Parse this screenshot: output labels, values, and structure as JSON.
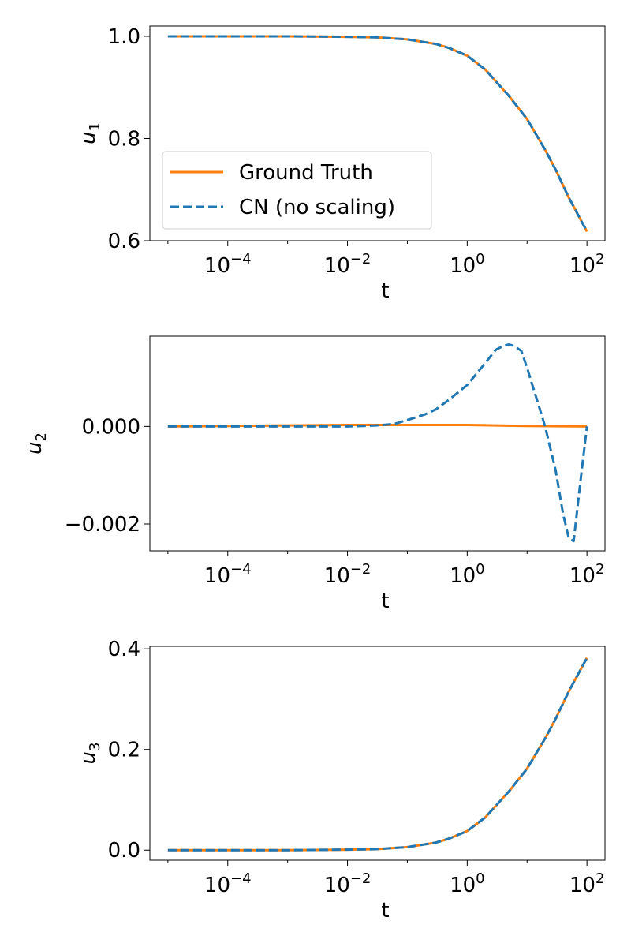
{
  "chart_data": [
    {
      "type": "line",
      "ylabel": "u",
      "ylabel_sub": "1",
      "xlabel": "t",
      "xscale": "log",
      "xlim": [
        5e-06,
        200
      ],
      "ylim": [
        0.6,
        1.02
      ],
      "xticks": [
        -4,
        -2,
        0,
        2
      ],
      "yticks": [
        0.6,
        0.8,
        1.0
      ],
      "ytick_labels": [
        "0.6",
        "0.8",
        "1.0"
      ],
      "legend": {
        "placement": "center-left",
        "entries": [
          "Ground Truth",
          "CN (no scaling)"
        ]
      },
      "series": [
        {
          "name": "Ground Truth",
          "color": "#ff7f0e",
          "style": "solid",
          "x": [
            1e-05,
            0.0001,
            0.001,
            0.01,
            0.03,
            0.1,
            0.3,
            0.5,
            1,
            2,
            3,
            5,
            10,
            20,
            30,
            50,
            100
          ],
          "y": [
            1.0,
            1.0,
            1.0,
            0.999,
            0.998,
            0.994,
            0.985,
            0.977,
            0.962,
            0.935,
            0.912,
            0.883,
            0.838,
            0.778,
            0.739,
            0.684,
            0.618
          ]
        },
        {
          "name": "CN (no scaling)",
          "color": "#1f77b4",
          "style": "dashed",
          "x": [
            1e-05,
            0.0001,
            0.001,
            0.01,
            0.03,
            0.1,
            0.3,
            0.5,
            1,
            2,
            3,
            5,
            10,
            20,
            30,
            50,
            100
          ],
          "y": [
            1.0,
            1.0,
            1.0,
            0.999,
            0.998,
            0.994,
            0.985,
            0.977,
            0.962,
            0.935,
            0.912,
            0.883,
            0.838,
            0.778,
            0.739,
            0.684,
            0.618
          ]
        }
      ]
    },
    {
      "type": "line",
      "ylabel": "u",
      "ylabel_sub": "2",
      "xlabel": "t",
      "xscale": "log",
      "xlim": [
        5e-06,
        200
      ],
      "ylim": [
        -0.00255,
        0.00185
      ],
      "xticks": [
        -4,
        -2,
        0,
        2
      ],
      "yticks": [
        -0.002,
        0.0
      ],
      "ytick_labels": [
        "−0.002",
        "0.000"
      ],
      "series": [
        {
          "name": "Ground Truth",
          "color": "#ff7f0e",
          "style": "solid",
          "x": [
            1e-05,
            0.001,
            0.01,
            0.1,
            1,
            10,
            100
          ],
          "y": [
            0.0,
            2e-05,
            3e-05,
            3e-05,
            3e-05,
            1e-05,
            0.0
          ]
        },
        {
          "name": "CN (no scaling)",
          "color": "#1f77b4",
          "style": "dashed",
          "x": [
            1e-05,
            0.01,
            0.03,
            0.06,
            0.1,
            0.2,
            0.3,
            0.5,
            1,
            2,
            3,
            4,
            5,
            6,
            8,
            10,
            15,
            20,
            30,
            40,
            50,
            60,
            80,
            100
          ],
          "y": [
            0.0,
            0.0,
            2e-05,
            5e-05,
            0.00013,
            0.00025,
            0.00035,
            0.00055,
            0.00085,
            0.0013,
            0.00157,
            0.00165,
            0.00168,
            0.00165,
            0.00155,
            0.0012,
            0.0005,
            0.0,
            -0.0009,
            -0.0018,
            -0.0023,
            -0.00235,
            -0.001,
            0.0
          ]
        }
      ]
    },
    {
      "type": "line",
      "ylabel": "u",
      "ylabel_sub": "3",
      "xlabel": "t",
      "xscale": "log",
      "xlim": [
        5e-06,
        200
      ],
      "ylim": [
        -0.02,
        0.405
      ],
      "xticks": [
        -4,
        -2,
        0,
        2
      ],
      "yticks": [
        0.0,
        0.2,
        0.4
      ],
      "ytick_labels": [
        "0.0",
        "0.2",
        "0.4"
      ],
      "series": [
        {
          "name": "Ground Truth",
          "color": "#ff7f0e",
          "style": "solid",
          "x": [
            1e-05,
            0.0001,
            0.001,
            0.01,
            0.03,
            0.1,
            0.3,
            0.5,
            1,
            2,
            3,
            5,
            10,
            20,
            30,
            50,
            100
          ],
          "y": [
            0.0,
            0.0,
            0.0,
            0.001,
            0.002,
            0.006,
            0.015,
            0.023,
            0.038,
            0.065,
            0.088,
            0.117,
            0.162,
            0.222,
            0.261,
            0.316,
            0.382
          ]
        },
        {
          "name": "CN (no scaling)",
          "color": "#1f77b4",
          "style": "dashed",
          "x": [
            1e-05,
            0.0001,
            0.001,
            0.01,
            0.03,
            0.1,
            0.3,
            0.5,
            1,
            2,
            3,
            5,
            10,
            20,
            30,
            50,
            100
          ],
          "y": [
            0.0,
            0.0,
            0.0,
            0.001,
            0.002,
            0.006,
            0.015,
            0.023,
            0.038,
            0.065,
            0.088,
            0.117,
            0.162,
            0.222,
            0.261,
            0.316,
            0.382
          ]
        }
      ]
    }
  ]
}
